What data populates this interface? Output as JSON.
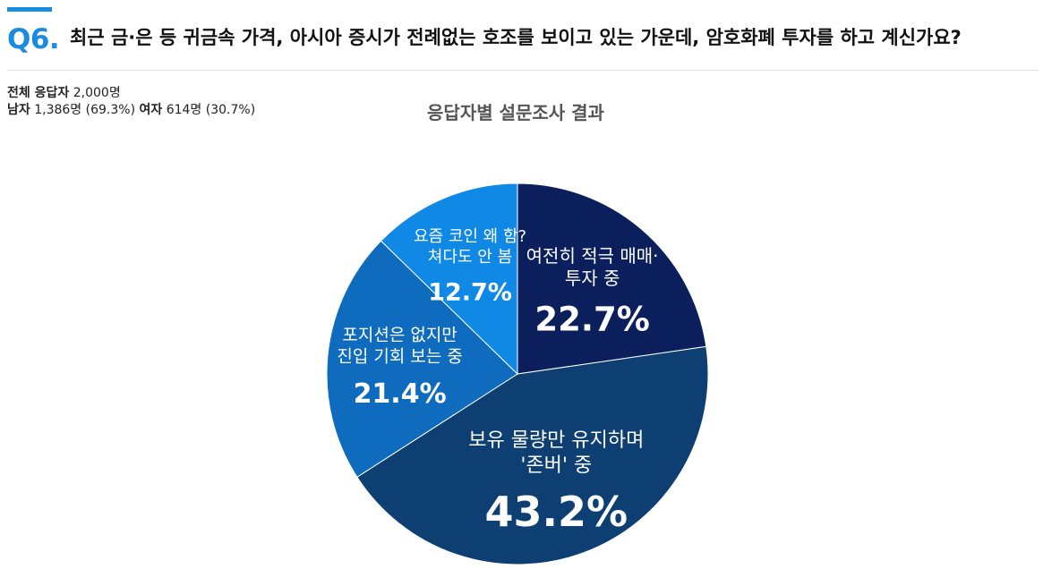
{
  "header": {
    "question_number": "Q6.",
    "question_text": "최근 금·은 등 귀금속 가격, 아시아 증시가 전례없는 호조를 보이고 있는 가운데, 암호화폐 투자를 하고 계신가요?"
  },
  "respondents": {
    "total_label": "전체 응답자",
    "total_value": "2,000명",
    "male_label": "남자",
    "male_value": "1,386명 (69.3%)",
    "female_label": "여자",
    "female_value": "614명 (30.7%)"
  },
  "colors": {
    "accent": "#1a8ce0",
    "slices": [
      "#0b1f5c",
      "#0d3f73",
      "#0f6bbd",
      "#1088e6"
    ],
    "divider": "#ffffff"
  },
  "chart_data": {
    "type": "pie",
    "title": "응답자별 설문조사 결과",
    "start_angle_deg": 0,
    "direction": "clockwise",
    "slices": [
      {
        "label_lines": [
          "여전히 적극 매매·",
          "투자 중"
        ],
        "value": 22.7,
        "value_text": "22.7%"
      },
      {
        "label_lines": [
          "보유 물량만 유지하며",
          "'존버' 중"
        ],
        "value": 43.2,
        "value_text": "43.2%"
      },
      {
        "label_lines": [
          "포지션은 없지만",
          "진입 기회 보는 중"
        ],
        "value": 21.4,
        "value_text": "21.4%"
      },
      {
        "label_lines": [
          "요즘 코인 왜 함?",
          "쳐다도 안 봄"
        ],
        "value": 12.7,
        "value_text": "12.7%"
      }
    ]
  }
}
